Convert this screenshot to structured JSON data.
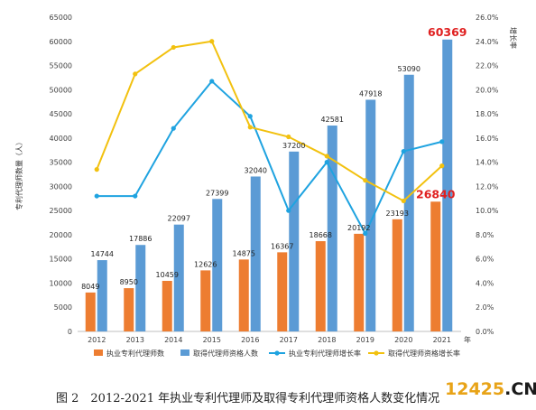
{
  "chart_data": {
    "type": "bar",
    "categories": [
      "2012",
      "2013",
      "2014",
      "2015",
      "2016",
      "2017",
      "2018",
      "2019",
      "2020",
      "2021"
    ],
    "x_unit": "年",
    "series": [
      {
        "name": "执业专利代理师数",
        "type": "bar",
        "axis": "left",
        "color": "#ed7d31",
        "values": [
          8049,
          8950,
          10459,
          12626,
          14875,
          16367,
          18668,
          20192,
          23193,
          26840
        ]
      },
      {
        "name": "取得代理师资格人数",
        "type": "bar",
        "axis": "left",
        "color": "#5b9bd5",
        "values": [
          14744,
          17886,
          22097,
          27399,
          32040,
          37200,
          42581,
          47918,
          53090,
          60369
        ]
      },
      {
        "name": "执业专利代理师增长率",
        "type": "line",
        "axis": "right",
        "color": "#1fa3e0",
        "values": [
          11.2,
          11.2,
          16.8,
          20.7,
          17.8,
          10.0,
          14.0,
          8.1,
          14.9,
          15.7
        ]
      },
      {
        "name": "取得代理师资格增长率",
        "type": "line",
        "axis": "right",
        "color": "#f2c10f",
        "values": [
          13.4,
          21.3,
          23.5,
          24.0,
          16.9,
          16.1,
          14.5,
          12.5,
          10.8,
          13.7
        ]
      }
    ],
    "ylabel_left": "专利代理师数量（人）",
    "ylabel_right": "增长率",
    "ylim_left": [
      0,
      65000
    ],
    "yticks_left": [
      0,
      5000,
      10000,
      15000,
      20000,
      25000,
      30000,
      35000,
      40000,
      45000,
      50000,
      55000,
      60000,
      65000
    ],
    "ylim_right": [
      0,
      26
    ],
    "yticks_right": [
      "0.0%",
      "2.0%",
      "4.0%",
      "6.0%",
      "8.0%",
      "10.0%",
      "12.0%",
      "14.0%",
      "16.0%",
      "18.0%",
      "20.0%",
      "22.0%",
      "24.0%",
      "26.0%"
    ],
    "highlight_labels": {
      "2021_bar_left": "26840",
      "2021_bar_right": "60369"
    },
    "highlight_color": "#e02020",
    "legend_position": "bottom",
    "grid": false
  },
  "caption": "图 2　2012-2021 年执业专利代理师及取得专利代理师资格人数变化情况",
  "watermark": {
    "part1": "12425",
    "part2": ".CN"
  }
}
